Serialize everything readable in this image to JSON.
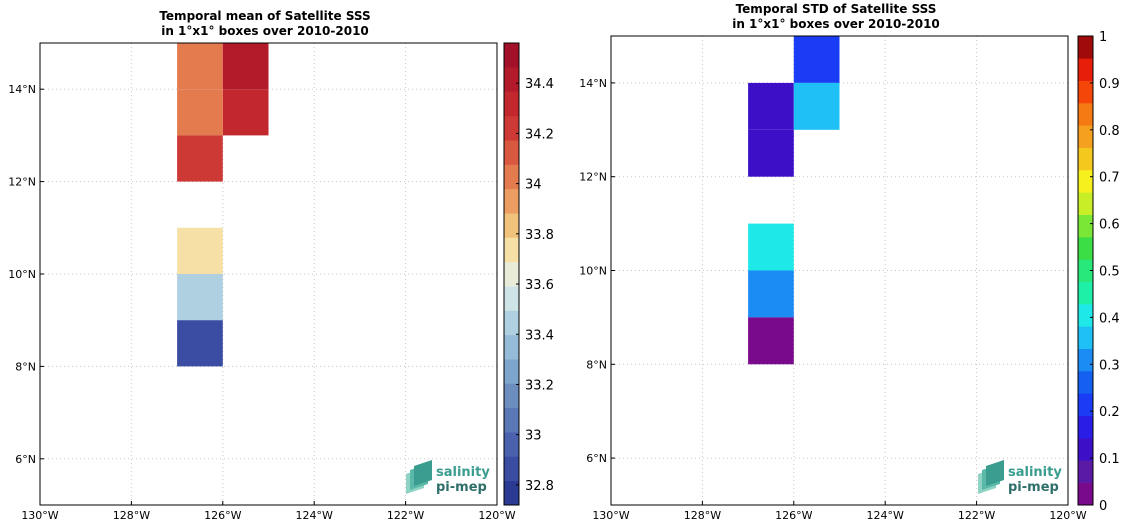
{
  "logo": {
    "line1": "salinity",
    "line2": "pi-mep"
  },
  "chart_data": [
    {
      "type": "heatmap",
      "title_line1": "Temporal mean of Satellite SSS",
      "title_line2": "in 1°x1° boxes over 2010-2010",
      "x_tick_values": [
        -130,
        -128,
        -126,
        -124,
        -122,
        -120
      ],
      "x_tick_labels": [
        "130°W",
        "128°W",
        "126°W",
        "124°W",
        "122°W",
        "120°W"
      ],
      "y_tick_values": [
        6,
        8,
        10,
        12,
        14
      ],
      "y_tick_labels": [
        "6°N",
        "8°N",
        "10°N",
        "12°N",
        "14°N"
      ],
      "xlim": [
        -130,
        -120
      ],
      "ylim": [
        5,
        15
      ],
      "grid": true,
      "colorbar": {
        "range": [
          32.72,
          34.56
        ],
        "ticks": [
          32.8,
          33,
          33.2,
          33.4,
          33.6,
          33.8,
          34,
          34.2,
          34.4
        ],
        "tick_labels": [
          "32.8",
          "33",
          "33.2",
          "33.4",
          "33.6",
          "33.8",
          "34",
          "34.2",
          "34.4"
        ],
        "colors": [
          "#2b3a93",
          "#3a4da3",
          "#4a62ad",
          "#5a78b5",
          "#6b8ebe",
          "#7ea6cc",
          "#95bbd8",
          "#aed0e0",
          "#cfe4e6",
          "#e8ecd8",
          "#f6e0a6",
          "#f1c27b",
          "#ec9e62",
          "#e47b4e",
          "#d95840",
          "#cd3a36",
          "#c1272d",
          "#b31b2b",
          "#a3102a"
        ],
        "position": "right"
      },
      "cells": [
        {
          "lon": -127,
          "lat": 14,
          "value": 34.04
        },
        {
          "lon": -126,
          "lat": 14,
          "value": 34.46
        },
        {
          "lon": -126,
          "lat": 13,
          "value": 34.36
        },
        {
          "lon": -127,
          "lat": 13,
          "value": 34.04
        },
        {
          "lon": -127,
          "lat": 12,
          "value": 34.24
        },
        {
          "lon": -127,
          "lat": 10,
          "value": 33.7
        },
        {
          "lon": -127,
          "lat": 9,
          "value": 33.42
        },
        {
          "lon": -127,
          "lat": 8,
          "value": 32.82
        }
      ]
    },
    {
      "type": "heatmap",
      "title_line1": "Temporal STD of Satellite SSS",
      "title_line2": "in 1°x1° boxes over 2010-2010",
      "x_tick_values": [
        -130,
        -128,
        -126,
        -124,
        -122,
        -120
      ],
      "x_tick_labels": [
        "130°W",
        "128°W",
        "126°W",
        "124°W",
        "122°W",
        "120°W"
      ],
      "y_tick_values": [
        6,
        8,
        10,
        12,
        14
      ],
      "y_tick_labels": [
        "6°N",
        "8°N",
        "10°N",
        "12°N",
        "14°N"
      ],
      "xlim": [
        -130,
        -120
      ],
      "ylim": [
        5,
        15
      ],
      "grid": true,
      "colorbar": {
        "range": [
          0,
          1
        ],
        "ticks": [
          0,
          0.1,
          0.2,
          0.3,
          0.4,
          0.5,
          0.6,
          0.7,
          0.8,
          0.9,
          1
        ],
        "tick_labels": [
          "0",
          "0.1",
          "0.2",
          "0.3",
          "0.4",
          "0.5",
          "0.6",
          "0.7",
          "0.8",
          "0.9",
          "1"
        ],
        "colors": [
          "#7a0a8c",
          "#5b1aa6",
          "#3d10c8",
          "#2a1ee6",
          "#1a3cf5",
          "#1460f0",
          "#1c8cf5",
          "#1ec0f5",
          "#1ee8e8",
          "#1ef0a8",
          "#28e87a",
          "#3cde46",
          "#7ae636",
          "#c8ee28",
          "#f5f01e",
          "#f5c81e",
          "#f5a01e",
          "#f57a14",
          "#f5460a",
          "#e61e0a",
          "#a00a0a"
        ],
        "position": "right"
      },
      "cells": [
        {
          "lon": -126,
          "lat": 14,
          "value": 0.21
        },
        {
          "lon": -127,
          "lat": 13,
          "value": 0.13
        },
        {
          "lon": -126,
          "lat": 13,
          "value": 0.35
        },
        {
          "lon": -127,
          "lat": 12,
          "value": 0.13
        },
        {
          "lon": -127,
          "lat": 10,
          "value": 0.42
        },
        {
          "lon": -127,
          "lat": 9,
          "value": 0.29
        },
        {
          "lon": -127,
          "lat": 8,
          "value": 0.02
        }
      ]
    }
  ]
}
